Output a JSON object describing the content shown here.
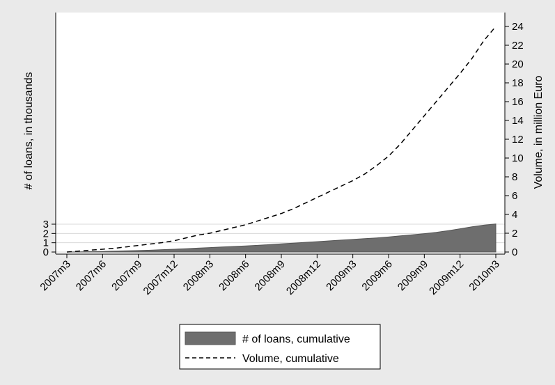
{
  "chart_data": {
    "type": "area",
    "x": [
      "2007m3",
      "2007m4",
      "2007m5",
      "2007m6",
      "2007m7",
      "2007m8",
      "2007m9",
      "2007m10",
      "2007m11",
      "2007m12",
      "2008m1",
      "2008m2",
      "2008m3",
      "2008m4",
      "2008m5",
      "2008m6",
      "2008m7",
      "2008m8",
      "2008m9",
      "2008m10",
      "2008m11",
      "2008m12",
      "2009m1",
      "2009m2",
      "2009m3",
      "2009m4",
      "2009m5",
      "2009m6",
      "2009m7",
      "2009m8",
      "2009m9",
      "2009m10",
      "2009m11",
      "2009m12",
      "2010m1",
      "2010m2",
      "2010m3"
    ],
    "x_tick_labels": [
      "2007m3",
      "2007m6",
      "2007m9",
      "2007m12",
      "2008m3",
      "2008m6",
      "2008m9",
      "2008m12",
      "2009m3",
      "2009m6",
      "2009m9",
      "2009m12",
      "2010m3"
    ],
    "series": [
      {
        "name": "# of loans, cumulative",
        "type": "area",
        "axis": "left",
        "color": "#6e6e6e",
        "values": [
          0.0,
          0.02,
          0.04,
          0.07,
          0.1,
          0.13,
          0.16,
          0.2,
          0.25,
          0.3,
          0.36,
          0.42,
          0.48,
          0.54,
          0.6,
          0.66,
          0.72,
          0.8,
          0.88,
          0.96,
          1.04,
          1.12,
          1.2,
          1.28,
          1.36,
          1.44,
          1.52,
          1.62,
          1.74,
          1.86,
          1.98,
          2.12,
          2.3,
          2.5,
          2.72,
          2.9,
          3.02
        ]
      },
      {
        "name": "Volume, cumulative",
        "type": "line",
        "line_style": "dashed",
        "axis": "right",
        "color": "#000000",
        "values": [
          0.0,
          0.1,
          0.2,
          0.3,
          0.4,
          0.55,
          0.7,
          0.85,
          1.0,
          1.2,
          1.5,
          1.8,
          2.0,
          2.3,
          2.6,
          2.9,
          3.3,
          3.7,
          4.1,
          4.6,
          5.2,
          5.8,
          6.4,
          7.0,
          7.6,
          8.3,
          9.2,
          10.2,
          11.5,
          13.0,
          14.5,
          16.0,
          17.5,
          19.0,
          20.6,
          22.5,
          24.0
        ]
      }
    ],
    "y_left": {
      "label": "# of loans, in thousands",
      "ticks": [
        "0",
        "1",
        "2",
        "3"
      ],
      "ylim": [
        0,
        3
      ]
    },
    "y_right": {
      "label": "Volume, in million Euro",
      "ticks": [
        "0",
        "2",
        "4",
        "6",
        "8",
        "10",
        "12",
        "14",
        "16",
        "18",
        "20",
        "22",
        "24"
      ],
      "ylim": [
        0,
        24
      ]
    },
    "grid": true,
    "legend_position": "bottom"
  }
}
